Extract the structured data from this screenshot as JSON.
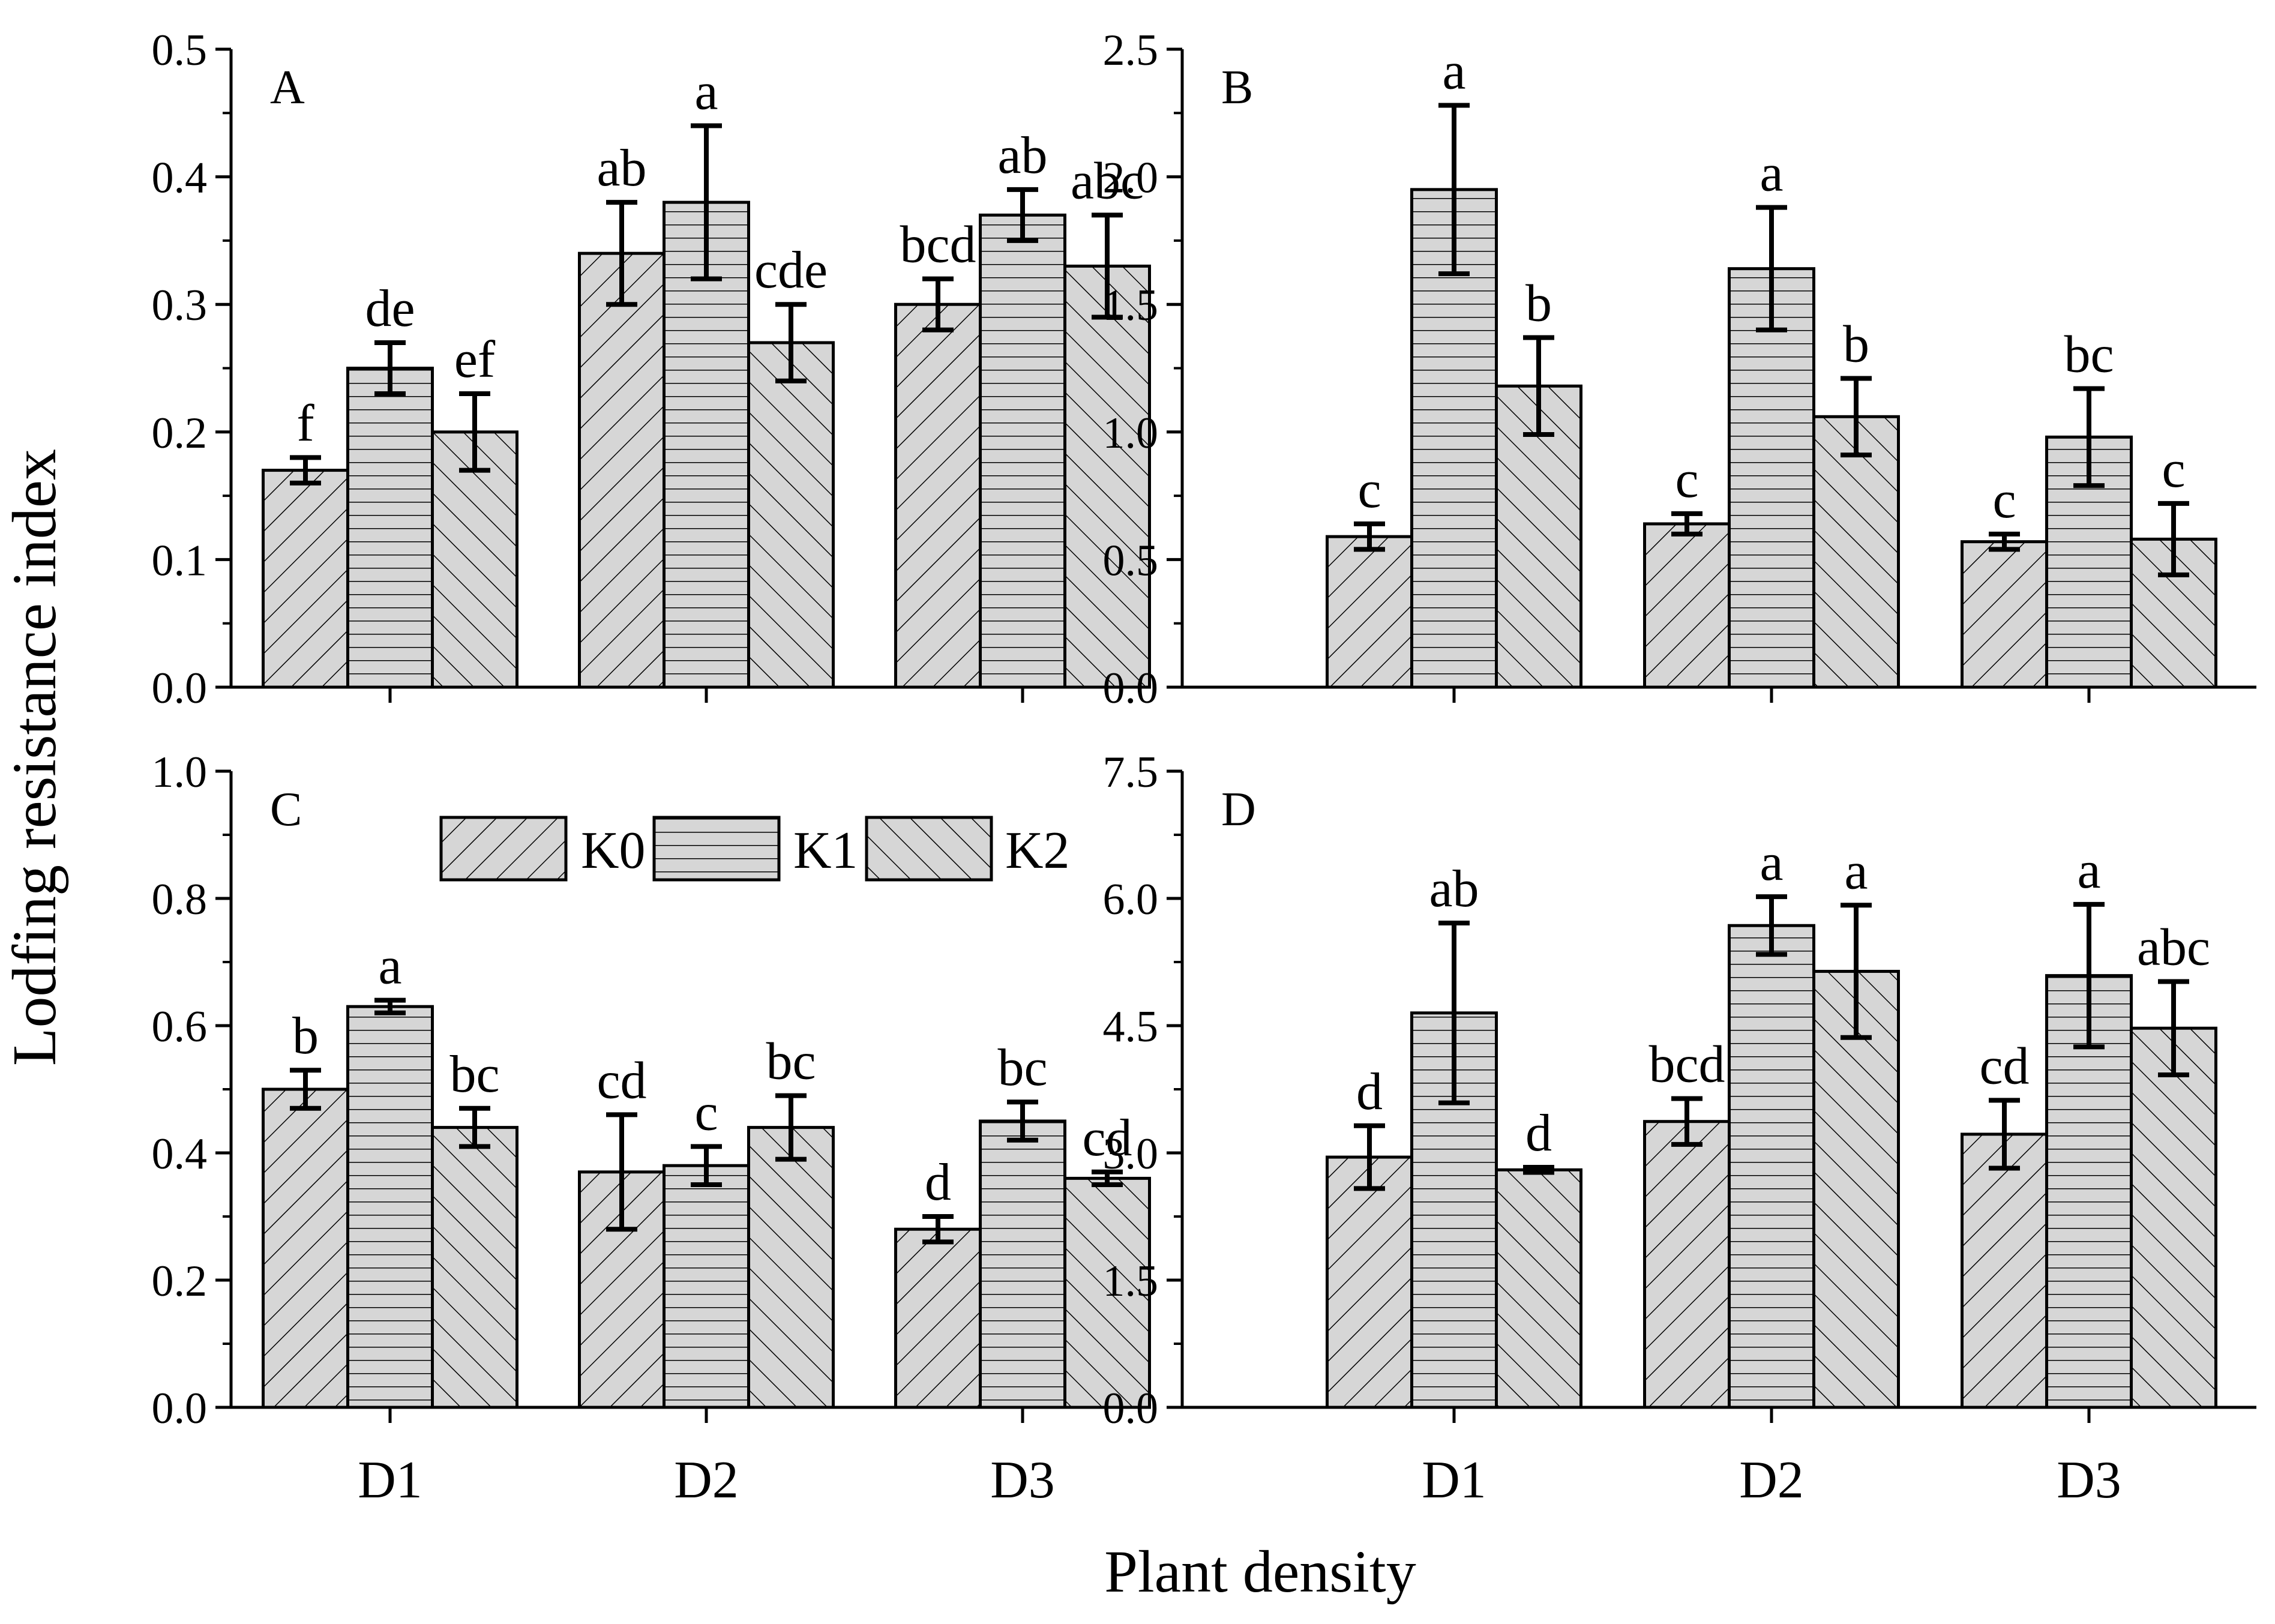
{
  "figure": {
    "ylabel": "Lodfing resistance index",
    "xlabel": "Plant density"
  },
  "legend": [
    "K0",
    "K1",
    "K2"
  ],
  "chart_data": [
    {
      "type": "bar",
      "panel": "A",
      "categories": [
        "D1",
        "D2",
        "D3"
      ],
      "ylim": [
        0,
        0.5
      ],
      "yticks": [
        "0.0",
        "0.1",
        "0.2",
        "0.3",
        "0.4",
        "0.5"
      ],
      "series": [
        {
          "name": "K0",
          "values": [
            0.17,
            0.34,
            0.3
          ],
          "errors": [
            0.01,
            0.04,
            0.02
          ],
          "labels": [
            "f",
            "ab",
            "bcd"
          ]
        },
        {
          "name": "K1",
          "values": [
            0.25,
            0.38,
            0.37
          ],
          "errors": [
            0.02,
            0.06,
            0.02
          ],
          "labels": [
            "de",
            "a",
            "ab"
          ]
        },
        {
          "name": "K2",
          "values": [
            0.2,
            0.27,
            0.33
          ],
          "errors": [
            0.03,
            0.03,
            0.04
          ],
          "labels": [
            "ef",
            "cde",
            "abc"
          ]
        }
      ]
    },
    {
      "type": "bar",
      "panel": "B",
      "categories": [
        "D1",
        "D2",
        "D3"
      ],
      "ylim": [
        0,
        2.5
      ],
      "yticks": [
        "0.0",
        "0.5",
        "1.0",
        "1.5",
        "2.0",
        "2.5"
      ],
      "series": [
        {
          "name": "K0",
          "values": [
            0.59,
            0.64,
            0.57
          ],
          "errors": [
            0.05,
            0.04,
            0.03
          ],
          "labels": [
            "c",
            "c",
            "c"
          ]
        },
        {
          "name": "K1",
          "values": [
            1.95,
            1.64,
            0.98
          ],
          "errors": [
            0.33,
            0.24,
            0.19
          ],
          "labels": [
            "a",
            "a",
            "bc"
          ]
        },
        {
          "name": "K2",
          "values": [
            1.18,
            1.06,
            0.58
          ],
          "errors": [
            0.19,
            0.15,
            0.14
          ],
          "labels": [
            "b",
            "b",
            "c"
          ]
        }
      ]
    },
    {
      "type": "bar",
      "panel": "C",
      "categories": [
        "D1",
        "D2",
        "D3"
      ],
      "ylim": [
        0,
        1.0
      ],
      "yticks": [
        "0.0",
        "0.2",
        "0.4",
        "0.6",
        "0.8",
        "1.0"
      ],
      "series": [
        {
          "name": "K0",
          "values": [
            0.5,
            0.37,
            0.28
          ],
          "errors": [
            0.03,
            0.09,
            0.02
          ],
          "labels": [
            "b",
            "cd",
            "d"
          ]
        },
        {
          "name": "K1",
          "values": [
            0.63,
            0.38,
            0.45
          ],
          "errors": [
            0.01,
            0.03,
            0.03
          ],
          "labels": [
            "a",
            "c",
            "bc"
          ]
        },
        {
          "name": "K2",
          "values": [
            0.44,
            0.44,
            0.36
          ],
          "errors": [
            0.03,
            0.05,
            0.01
          ],
          "labels": [
            "bc",
            "bc",
            "cd"
          ]
        }
      ]
    },
    {
      "type": "bar",
      "panel": "D",
      "categories": [
        "D1",
        "D2",
        "D3"
      ],
      "ylim": [
        0,
        7.5
      ],
      "yticks": [
        "0.0",
        "1.5",
        "3.0",
        "4.5",
        "6.0",
        "7.5"
      ],
      "series": [
        {
          "name": "K0",
          "values": [
            2.95,
            3.37,
            3.22
          ],
          "errors": [
            0.37,
            0.27,
            0.4
          ],
          "labels": [
            "d",
            "bcd",
            "cd"
          ]
        },
        {
          "name": "K1",
          "values": [
            4.65,
            5.68,
            5.09
          ],
          "errors": [
            1.06,
            0.34,
            0.84
          ],
          "labels": [
            "ab",
            "a",
            "a"
          ]
        },
        {
          "name": "K2",
          "values": [
            2.8,
            5.14,
            4.47
          ],
          "errors": [
            0.03,
            0.78,
            0.55
          ],
          "labels": [
            "d",
            "a",
            "abc"
          ]
        }
      ]
    }
  ]
}
